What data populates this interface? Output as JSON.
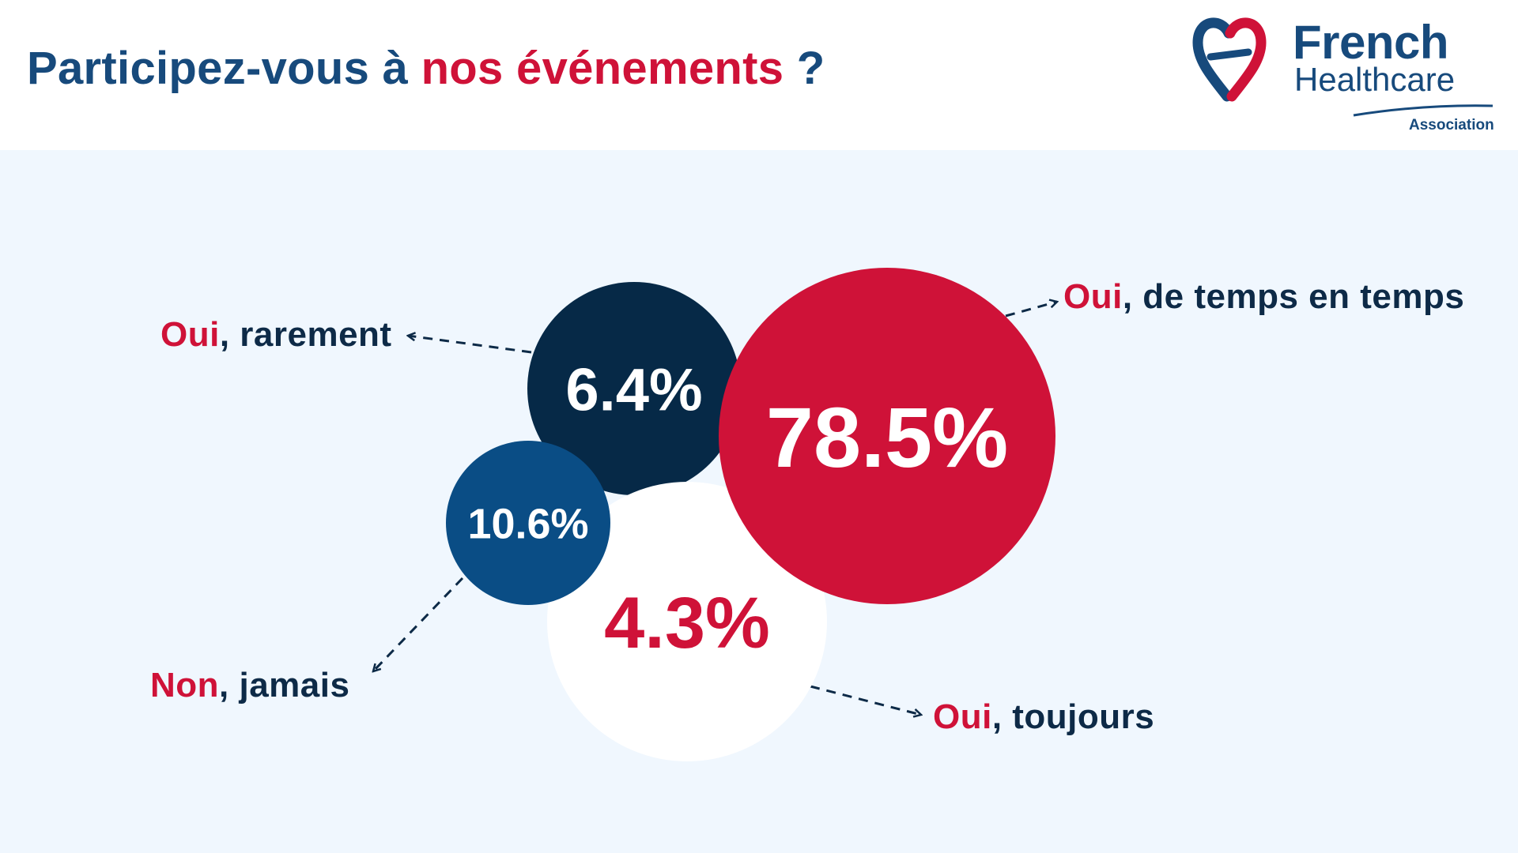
{
  "title": {
    "part1": "Participez-vous à ",
    "part2": "nos événements",
    "part3": " ?"
  },
  "logo": {
    "line1": "French",
    "line2": "Healthcare",
    "line3": "Association",
    "heart_colors": [
      "#174a7c",
      "#cf1238"
    ]
  },
  "colors": {
    "accent_red": "#cf1238",
    "navy": "#0d2a47",
    "dark_navy": "#062947",
    "mid_blue": "#0a4d85",
    "brand_blue": "#174a7c",
    "background": "#f0f7fe"
  },
  "chart_data": {
    "type": "bubble",
    "title": "Participez-vous à nos événements ?",
    "series": [
      {
        "highlight": "Oui",
        "rest": ", de temps en temps",
        "value": 78.5,
        "value_label": "78.5%",
        "color": "#cf1238",
        "text_color": "#ffffff"
      },
      {
        "highlight": "Oui",
        "rest": ", rarement",
        "value": 6.4,
        "value_label": "6.4%",
        "color": "#062947",
        "text_color": "#ffffff"
      },
      {
        "highlight": "Non",
        "rest": ", jamais",
        "value": 10.6,
        "value_label": "10.6%",
        "color": "#0a4d85",
        "text_color": "#ffffff"
      },
      {
        "highlight": "Oui",
        "rest": ", toujours",
        "value": 4.3,
        "value_label": "4.3%",
        "color": "#ffffff",
        "text_color": "#cf1238"
      }
    ]
  }
}
